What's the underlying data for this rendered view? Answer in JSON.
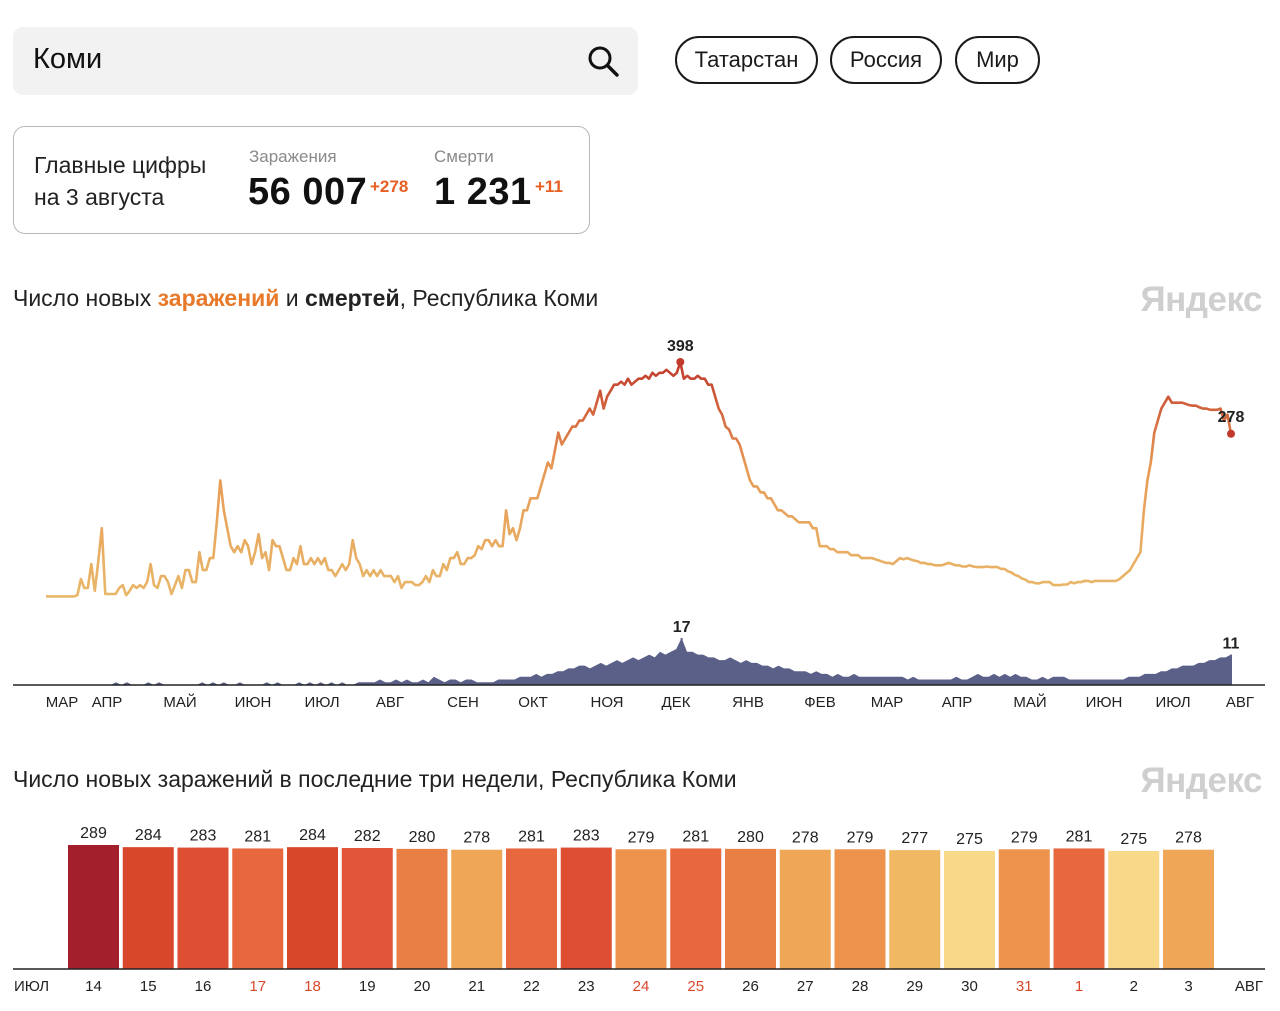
{
  "search": {
    "value": "Коми"
  },
  "chips": [
    "Татарстан",
    "Россия",
    "Мир"
  ],
  "stats": {
    "heading_line1": "Главные цифры",
    "heading_line2": "на 3 августа",
    "infections_label": "Заражения",
    "infections_total": "56 007",
    "infections_delta": "+278",
    "deaths_label": "Смерти",
    "deaths_total": "1 231",
    "deaths_delta": "+11"
  },
  "watermark": "Яндекс",
  "chart1_title": {
    "pre": "Число новых ",
    "infections": "заражений",
    "mid": " и ",
    "deaths": "смертей",
    "post": ", Республика Коми"
  },
  "chart2_title": "Число новых заражений в последние три недели, Республика Коми",
  "colors": {
    "infection_low": "#e8b86a",
    "infection_high": "#c0392b",
    "deaths_area": "#5b6089",
    "weekend": "#d9472b",
    "peak_bar": "#a31f2c"
  },
  "chart_data": [
    {
      "type": "line",
      "series": [
        {
          "values": [
            6,
            6,
            6,
            6,
            6,
            6,
            6,
            6,
            6,
            8,
            35,
            20,
            20,
            60,
            15,
            65,
            120,
            10,
            10,
            10,
            10,
            20,
            25,
            8,
            15,
            25,
            20,
            25,
            20,
            30,
            60,
            25,
            20,
            40,
            40,
            30,
            10,
            25,
            40,
            20,
            50,
            50,
            30,
            30,
            80,
            50,
            50,
            70,
            70,
            130,
            200,
            150,
            120,
            90,
            80,
            90,
            80,
            100,
            90,
            60,
            80,
            110,
            70,
            80,
            50,
            100,
            90,
            90,
            70,
            50,
            50,
            70,
            60,
            90,
            60,
            60,
            70,
            60,
            70,
            60,
            70,
            50,
            50,
            40,
            50,
            60,
            50,
            60,
            100,
            70,
            60,
            40,
            50,
            40,
            50,
            40,
            50,
            40,
            40,
            40,
            30,
            40,
            20,
            30,
            30,
            30,
            25,
            25,
            30,
            40,
            30,
            50,
            40,
            40,
            60,
            50,
            70,
            70,
            80,
            60,
            60,
            70,
            70,
            75,
            90,
            85,
            100,
            100,
            90,
            100,
            90,
            90,
            150,
            110,
            120,
            100,
            120,
            150,
            150,
            170,
            170,
            170,
            190,
            210,
            230,
            220,
            250,
            280,
            260,
            270,
            280,
            290,
            290,
            300,
            300,
            310,
            320,
            310,
            330,
            350,
            320,
            340,
            350,
            360,
            360,
            365,
            360,
            370,
            360,
            365,
            370,
            370,
            375,
            370,
            380,
            375,
            380,
            380,
            385,
            380,
            375,
            380,
            398,
            370,
            375,
            370,
            370,
            375,
            370,
            370,
            360,
            360,
            340,
            320,
            310,
            290,
            285,
            270,
            270,
            260,
            240,
            220,
            200,
            190,
            190,
            180,
            180,
            170,
            170,
            160,
            150,
            150,
            145,
            140,
            140,
            135,
            130,
            130,
            130,
            130,
            120,
            120,
            90,
            90,
            90,
            85,
            85,
            80,
            80,
            80,
            80,
            75,
            75,
            75,
            70,
            70,
            70,
            70,
            68,
            66,
            64,
            62,
            62,
            60,
            65,
            70,
            68,
            70,
            68,
            66,
            65,
            62,
            62,
            60,
            60,
            58,
            58,
            58,
            60,
            62,
            60,
            58,
            58,
            56,
            56,
            58,
            56,
            55,
            55,
            55,
            56,
            55,
            55,
            55,
            52,
            52,
            48,
            46,
            42,
            40,
            36,
            34,
            30,
            30,
            28,
            28,
            30,
            30,
            30,
            25,
            25,
            25,
            26,
            26,
            30,
            28,
            30,
            30,
            32,
            32,
            30,
            32,
            32,
            32,
            32,
            32,
            32,
            32,
            35,
            40,
            45,
            50,
            60,
            70,
            80,
            150,
            200,
            230,
            280,
            300,
            320,
            330,
            340,
            330,
            330,
            330,
            330,
            328,
            326,
            325,
            325,
            322,
            320,
            320,
            318,
            318,
            318,
            320,
            300,
            310,
            278
          ]
        }
      ],
      "annotations": [
        "398",
        "278"
      ]
    },
    {
      "type": "area",
      "series": [
        {
          "values": [
            0,
            0,
            0,
            0,
            0,
            0,
            0,
            0,
            0,
            0,
            0,
            0,
            0,
            1,
            0,
            1,
            0,
            0,
            0,
            1,
            0,
            1,
            0,
            0,
            0,
            0,
            0,
            0,
            0,
            1,
            0,
            1,
            0,
            1,
            0,
            0,
            1,
            0,
            0,
            0,
            0,
            1,
            0,
            1,
            0,
            0,
            0,
            1,
            0,
            1,
            0,
            1,
            0,
            1,
            0,
            1,
            0,
            0,
            1,
            1,
            1,
            1,
            2,
            1,
            1,
            2,
            1,
            2,
            1,
            1,
            2,
            1,
            3,
            2,
            1,
            2,
            2,
            1,
            2,
            2,
            1,
            1,
            1,
            1,
            2,
            2,
            2,
            2,
            3,
            3,
            3,
            4,
            3,
            4,
            4,
            5,
            5,
            6,
            6,
            7,
            7,
            6,
            7,
            8,
            7,
            8,
            9,
            8,
            9,
            10,
            9,
            10,
            11,
            10,
            12,
            11,
            12,
            13,
            17,
            12,
            12,
            11,
            11,
            10,
            10,
            9,
            9,
            10,
            9,
            8,
            9,
            8,
            8,
            7,
            7,
            6,
            7,
            6,
            6,
            5,
            5,
            5,
            4,
            5,
            4,
            4,
            3,
            4,
            3,
            3,
            4,
            3,
            3,
            3,
            3,
            3,
            3,
            3,
            3,
            3,
            2,
            3,
            2,
            2,
            2,
            2,
            2,
            2,
            2,
            3,
            2,
            2,
            3,
            4,
            3,
            3,
            4,
            3,
            4,
            3,
            4,
            3,
            3,
            2,
            2,
            3,
            2,
            3,
            3,
            3,
            2,
            2,
            2,
            2,
            2,
            2,
            2,
            2,
            2,
            2,
            2,
            3,
            3,
            3,
            4,
            4,
            4,
            5,
            5,
            6,
            6,
            7,
            7,
            7,
            8,
            8,
            9,
            9,
            10,
            10,
            11
          ]
        }
      ],
      "annotations": [
        "17",
        "11"
      ]
    },
    {
      "type": "bar",
      "categories": [
        "14",
        "15",
        "16",
        "17",
        "18",
        "19",
        "20",
        "21",
        "22",
        "23",
        "24",
        "25",
        "26",
        "27",
        "28",
        "29",
        "30",
        "31",
        "1",
        "2",
        "3"
      ],
      "weekend": [
        "17",
        "18",
        "24",
        "25",
        "31",
        "1"
      ],
      "values": [
        289,
        284,
        283,
        281,
        284,
        282,
        280,
        278,
        281,
        283,
        279,
        281,
        280,
        278,
        279,
        277,
        275,
        279,
        281,
        275,
        278
      ]
    }
  ],
  "axis1_months": [
    "МАР",
    "АПР",
    "МАЙ",
    "ИЮН",
    "ИЮЛ",
    "АВГ",
    "СЕН",
    "ОКТ",
    "НОЯ",
    "ДЕК",
    "ЯНВ",
    "ФЕВ",
    "МАР",
    "АПР",
    "МАЙ",
    "ИЮН",
    "ИЮЛ",
    "АВГ"
  ],
  "axis2_left": "ИЮЛ",
  "axis2_right": "АВГ"
}
